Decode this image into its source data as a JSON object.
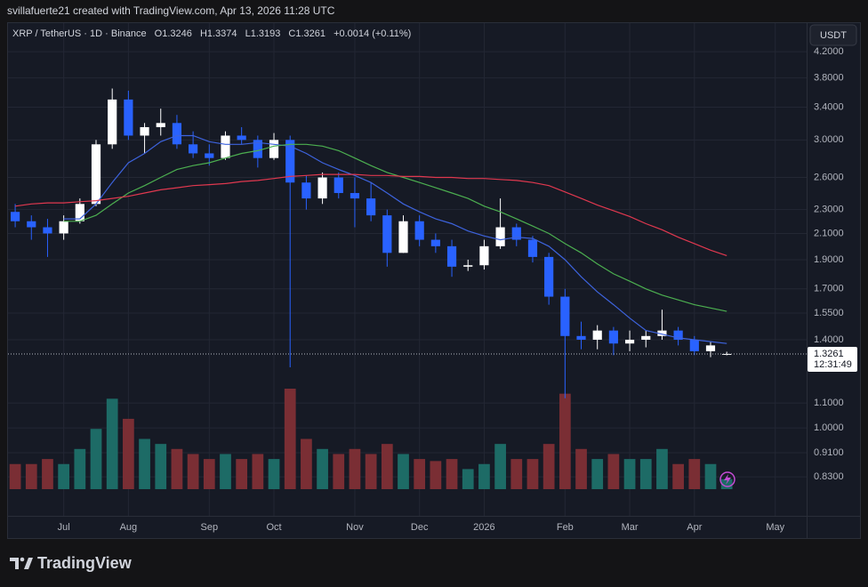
{
  "header": {
    "creator": "svillafuerte21 created with TradingView.com, Apr 13, 2026 11:28 UTC",
    "currency": "USDT",
    "brand": "TradingView"
  },
  "chart_data": {
    "type": "candlestick",
    "symbol": "XRP / TetherUS · 1D · Binance",
    "ohlc_text": [
      "O1.3246",
      "H1.3374",
      "L1.3193",
      "C1.3261"
    ],
    "change_text": "+0.0014 (+0.11%)",
    "categories": [
      null,
      null,
      null,
      "Jul",
      null,
      null,
      null,
      "Aug",
      null,
      null,
      null,
      null,
      "Sep",
      null,
      null,
      null,
      "Oct",
      null,
      null,
      null,
      null,
      "Nov",
      null,
      null,
      null,
      "Dec",
      null,
      null,
      null,
      "2026",
      null,
      null,
      null,
      null,
      "Feb",
      null,
      null,
      null,
      "Mar",
      null,
      null,
      null,
      "Apr",
      null,
      null,
      null,
      null,
      "May",
      null
    ],
    "open": [
      2.28,
      2.2,
      2.15,
      2.1,
      2.2,
      2.35,
      2.95,
      3.5,
      3.05,
      3.15,
      3.2,
      2.95,
      2.85,
      2.8,
      3.05,
      3.0,
      2.8,
      3.0,
      2.55,
      2.4,
      2.6,
      2.45,
      2.4,
      2.25,
      1.95,
      2.2,
      2.05,
      2.0,
      1.85,
      1.86,
      2.0,
      2.15,
      2.05,
      1.92,
      1.65,
      1.42,
      1.4,
      1.45,
      1.38,
      1.4,
      1.42,
      1.45,
      1.4,
      1.34,
      1.3246,
      null,
      null,
      null,
      null
    ],
    "high": [
      2.35,
      2.25,
      2.22,
      2.25,
      2.4,
      3.0,
      3.65,
      3.62,
      3.2,
      3.38,
      3.3,
      3.1,
      2.95,
      3.1,
      3.15,
      3.05,
      3.08,
      3.05,
      2.62,
      2.65,
      2.65,
      2.6,
      2.55,
      2.3,
      2.25,
      2.25,
      2.1,
      2.05,
      1.9,
      2.05,
      2.4,
      2.18,
      2.08,
      1.95,
      1.7,
      1.5,
      1.48,
      1.47,
      1.45,
      1.45,
      1.57,
      1.47,
      1.42,
      1.39,
      1.3374,
      null,
      null,
      null,
      null
    ],
    "low": [
      2.15,
      2.05,
      1.92,
      2.05,
      2.18,
      2.33,
      2.9,
      3.0,
      2.85,
      3.05,
      2.9,
      2.8,
      2.72,
      2.78,
      2.95,
      2.7,
      2.78,
      1.26,
      2.3,
      2.35,
      2.4,
      2.15,
      2.2,
      1.85,
      1.95,
      2.0,
      1.95,
      1.78,
      1.82,
      1.83,
      1.98,
      2.0,
      1.88,
      1.6,
      1.12,
      1.35,
      1.35,
      1.32,
      1.34,
      1.36,
      1.4,
      1.37,
      1.32,
      1.31,
      1.3193,
      null,
      null,
      null,
      null
    ],
    "close": [
      2.2,
      2.15,
      2.1,
      2.2,
      2.35,
      2.95,
      3.5,
      3.05,
      3.15,
      3.2,
      2.95,
      2.85,
      2.8,
      3.05,
      3.0,
      2.8,
      3.0,
      2.55,
      2.4,
      2.6,
      2.45,
      2.4,
      2.25,
      1.95,
      2.2,
      2.05,
      2.0,
      1.85,
      1.86,
      2.0,
      2.15,
      2.05,
      1.92,
      1.65,
      1.42,
      1.4,
      1.45,
      1.38,
      1.4,
      1.42,
      1.45,
      1.4,
      1.34,
      1.37,
      1.3261,
      null,
      null,
      null,
      null
    ],
    "volume": [
      25,
      25,
      30,
      25,
      40,
      60,
      90,
      70,
      50,
      45,
      40,
      35,
      30,
      35,
      30,
      35,
      30,
      100,
      50,
      40,
      35,
      40,
      35,
      45,
      35,
      30,
      28,
      30,
      20,
      25,
      45,
      30,
      30,
      45,
      95,
      40,
      30,
      35,
      30,
      30,
      40,
      25,
      30,
      25,
      10,
      null,
      null,
      null,
      null
    ],
    "up_color": "#ffffff",
    "down_color": "#2962ff",
    "volume_up_color": "#1d6b66",
    "volume_down_color": "#7a2e34",
    "series": [
      {
        "color": "#3d63dd",
        "values": [
          null,
          null,
          null,
          2.22,
          2.22,
          2.35,
          2.55,
          2.75,
          2.85,
          2.98,
          3.05,
          3.05,
          2.98,
          2.95,
          2.95,
          2.97,
          2.95,
          2.93,
          2.85,
          2.75,
          2.68,
          2.62,
          2.55,
          2.45,
          2.35,
          2.28,
          2.22,
          2.18,
          2.12,
          2.08,
          2.05,
          2.07,
          2.06,
          2.0,
          1.9,
          1.78,
          1.68,
          1.6,
          1.52,
          1.45,
          1.43,
          1.41,
          1.4,
          1.39,
          1.38,
          null,
          null,
          null,
          null
        ]
      },
      {
        "color": "#4caf50",
        "values": [
          null,
          null,
          null,
          2.2,
          2.2,
          2.25,
          2.35,
          2.45,
          2.52,
          2.6,
          2.68,
          2.72,
          2.75,
          2.8,
          2.85,
          2.88,
          2.93,
          2.95,
          2.95,
          2.93,
          2.88,
          2.8,
          2.72,
          2.65,
          2.6,
          2.55,
          2.5,
          2.45,
          2.4,
          2.33,
          2.28,
          2.22,
          2.16,
          2.1,
          2.02,
          1.95,
          1.87,
          1.8,
          1.75,
          1.7,
          1.66,
          1.63,
          1.6,
          1.58,
          1.56,
          null,
          null,
          null,
          null
        ]
      },
      {
        "color": "#e0384f",
        "values": [
          2.33,
          2.35,
          2.36,
          2.36,
          2.37,
          2.38,
          2.4,
          2.42,
          2.45,
          2.48,
          2.5,
          2.52,
          2.53,
          2.54,
          2.56,
          2.57,
          2.59,
          2.61,
          2.62,
          2.63,
          2.63,
          2.63,
          2.62,
          2.62,
          2.61,
          2.61,
          2.6,
          2.6,
          2.59,
          2.59,
          2.58,
          2.57,
          2.55,
          2.52,
          2.46,
          2.4,
          2.34,
          2.29,
          2.24,
          2.18,
          2.13,
          2.07,
          2.02,
          1.97,
          1.93,
          null,
          null,
          null,
          null
        ]
      }
    ],
    "log_scale": true,
    "ylim": [
      0.72,
      4.7
    ],
    "yticks": [
      {
        "value": 0.83,
        "label": "0.8300"
      },
      {
        "value": 0.91,
        "label": "0.9100"
      },
      {
        "value": 1.0,
        "label": "1.0000"
      },
      {
        "value": 1.1,
        "label": "1.1000"
      },
      {
        "value": 1.4,
        "label": "1.4000"
      },
      {
        "value": 1.55,
        "label": "1.5500"
      },
      {
        "value": 1.7,
        "label": "1.7000"
      },
      {
        "value": 1.9,
        "label": "1.9000"
      },
      {
        "value": 2.1,
        "label": "2.1000"
      },
      {
        "value": 2.3,
        "label": "2.3000"
      },
      {
        "value": 2.6,
        "label": "2.6000"
      },
      {
        "value": 3.0,
        "label": "3.0000"
      },
      {
        "value": 3.4,
        "label": "3.4000"
      },
      {
        "value": 3.8,
        "label": "3.8000"
      },
      {
        "value": 4.2,
        "label": "4.2000"
      }
    ],
    "grid": true,
    "last_price": 1.3261,
    "countdown": "12:31:49"
  }
}
